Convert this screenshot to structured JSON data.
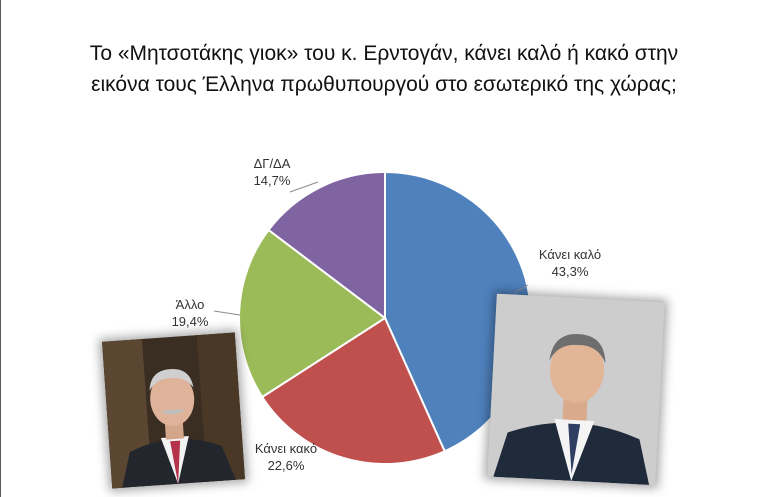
{
  "title_line1": "Το «Μητσοτάκης γιοκ» του κ. Ερντογάν, κάνει καλό ή κακό στην",
  "title_line2": "εικόνα τους Έλληνα πρωθυπουργού στο εσωτερικό της χώρας;",
  "chart_data": {
    "type": "pie",
    "title": "Το «Μητσοτάκης γιοκ» του κ. Ερντογάν, κάνει καλό ή κακό στην εικόνα τους Έλληνα πρωθυπουργού στο εσωτερικό της χώρας;",
    "slices": [
      {
        "label": "Κάνει καλό",
        "value": 43.3,
        "value_text": "43,3%",
        "color": "#4f81bd"
      },
      {
        "label": "Κάνει κακό",
        "value": 22.6,
        "value_text": "22,6%",
        "color": "#c0504d"
      },
      {
        "label": "Άλλο",
        "value": 19.4,
        "value_text": "19,4%",
        "color": "#9bbb59"
      },
      {
        "label": "ΔΓ/ΔΑ",
        "value": 14.7,
        "value_text": "14,7%",
        "color": "#8064a2"
      }
    ],
    "start": "12 o'clock",
    "direction": "clockwise",
    "legend": "none"
  },
  "photos": {
    "left_icon": "portrait-photo",
    "right_icon": "portrait-photo"
  }
}
